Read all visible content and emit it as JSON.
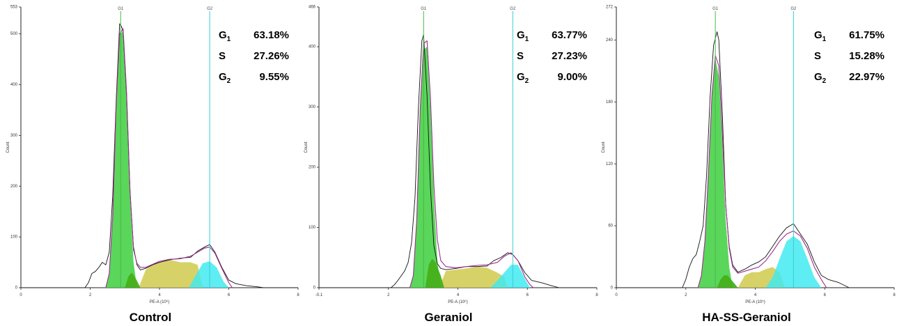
{
  "chart_data": [
    {
      "type": "area",
      "caption": "Control",
      "ylabel": "Count",
      "xlabel": "PE-A (10⁶)",
      "xlim": [
        0,
        8
      ],
      "ylim": [
        0,
        553
      ],
      "x_ticks": [
        "0",
        "2",
        "4",
        "6",
        "8"
      ],
      "y_ticks": [
        {
          "v": 0,
          "label": "0"
        },
        {
          "v": 100,
          "label": "100"
        },
        {
          "v": 200,
          "label": "200"
        },
        {
          "v": 300,
          "label": "300"
        },
        {
          "v": 400,
          "label": "400"
        },
        {
          "v": 500,
          "label": "500"
        },
        {
          "v": 553,
          "label": "553"
        }
      ],
      "gates": [
        {
          "label": "G1",
          "x": 2.88
        },
        {
          "label": "G2",
          "x": 5.45
        }
      ],
      "phases": [
        {
          "name": "G",
          "sub": "1",
          "value": "63.18%"
        },
        {
          "name": "S",
          "sub": "",
          "value": "27.26%"
        },
        {
          "name": "G",
          "sub": "2",
          "value": "9.55%"
        }
      ],
      "series": {
        "g1": {
          "x": [
            2.45,
            2.55,
            2.65,
            2.75,
            2.85,
            2.95,
            3.05,
            3.15,
            3.25,
            3.35
          ],
          "y": [
            0,
            28,
            140,
            360,
            500,
            505,
            380,
            180,
            50,
            0
          ]
        },
        "s_early": {
          "x": [
            3.0,
            3.1,
            3.2,
            3.3,
            3.45
          ],
          "y": [
            0,
            22,
            30,
            20,
            0
          ]
        },
        "s": {
          "x": [
            3.4,
            3.6,
            3.8,
            4.0,
            4.3,
            4.6,
            4.9,
            5.1,
            5.25
          ],
          "y": [
            0,
            35,
            45,
            50,
            55,
            50,
            50,
            45,
            0
          ]
        },
        "g2": {
          "x": [
            4.85,
            5.05,
            5.25,
            5.45,
            5.65,
            5.85,
            6.0
          ],
          "y": [
            0,
            25,
            48,
            52,
            40,
            12,
            0
          ]
        },
        "raw": {
          "x": [
            0,
            1.85,
            1.95,
            2.05,
            2.15,
            2.25,
            2.35,
            2.45,
            2.55,
            2.65,
            2.75,
            2.85,
            2.9,
            2.95,
            3.05,
            3.15,
            3.25,
            3.35,
            3.45,
            3.6,
            3.8,
            4.0,
            4.3,
            4.6,
            4.9,
            5.1,
            5.3,
            5.45,
            5.6,
            5.8,
            6.0,
            6.2,
            6.5,
            6.8,
            7.0,
            8.0
          ],
          "y": [
            0,
            0,
            10,
            28,
            32,
            40,
            50,
            45,
            70,
            180,
            370,
            520,
            515,
            505,
            380,
            190,
            80,
            45,
            35,
            38,
            45,
            50,
            55,
            58,
            60,
            72,
            80,
            85,
            70,
            40,
            15,
            8,
            4,
            2,
            0,
            0
          ]
        },
        "fit": {
          "x": [
            2.45,
            2.55,
            2.65,
            2.75,
            2.85,
            2.95,
            3.05,
            3.15,
            3.25,
            3.35,
            3.45,
            3.6,
            3.8,
            4.0,
            4.3,
            4.6,
            4.9,
            5.1,
            5.3,
            5.45,
            5.6,
            5.8,
            6.0,
            6.1
          ],
          "y": [
            0,
            28,
            140,
            360,
            500,
            510,
            385,
            190,
            75,
            48,
            40,
            40,
            46,
            52,
            56,
            57,
            62,
            70,
            78,
            80,
            68,
            38,
            10,
            0
          ]
        }
      }
    },
    {
      "type": "area",
      "caption": "Geraniol",
      "ylabel": "Count",
      "xlabel": "PE-A (10⁶)",
      "xlim": [
        -0.1,
        8
      ],
      "ylim": [
        0,
        466
      ],
      "x_ticks": [
        "-0.1",
        "2",
        "4",
        "6",
        "8"
      ],
      "y_ticks": [
        {
          "v": 0,
          "label": "0"
        },
        {
          "v": 100,
          "label": "100"
        },
        {
          "v": 200,
          "label": "200"
        },
        {
          "v": 300,
          "label": "300"
        },
        {
          "v": 400,
          "label": "400"
        },
        {
          "v": 466,
          "label": "466"
        }
      ],
      "gates": [
        {
          "label": "G1",
          "x": 2.95
        },
        {
          "label": "G2",
          "x": 5.55
        }
      ],
      "phases": [
        {
          "name": "G",
          "sub": "1",
          "value": "63.77%"
        },
        {
          "name": "S",
          "sub": "",
          "value": "27.23%"
        },
        {
          "name": "G",
          "sub": "2",
          "value": "9.00%"
        }
      ],
      "series": {
        "g1": {
          "x": [
            2.55,
            2.65,
            2.75,
            2.85,
            2.95,
            3.05,
            3.15,
            3.25,
            3.35,
            3.45
          ],
          "y": [
            0,
            20,
            110,
            290,
            395,
            400,
            300,
            150,
            45,
            0
          ]
        },
        "s_early": {
          "x": [
            3.0,
            3.1,
            3.2,
            3.3,
            3.45,
            3.55
          ],
          "y": [
            0,
            38,
            48,
            42,
            20,
            0
          ]
        },
        "s": {
          "x": [
            3.4,
            3.6,
            3.9,
            4.2,
            4.5,
            4.8,
            5.1,
            5.3,
            5.4
          ],
          "y": [
            0,
            28,
            30,
            32,
            35,
            33,
            25,
            18,
            0
          ]
        },
        "g2": {
          "x": [
            4.9,
            5.1,
            5.3,
            5.5,
            5.7,
            5.9,
            6.05
          ],
          "y": [
            0,
            12,
            25,
            38,
            38,
            15,
            0
          ]
        },
        "raw": {
          "x": [
            -0.1,
            2.0,
            2.1,
            2.2,
            2.3,
            2.4,
            2.5,
            2.6,
            2.7,
            2.8,
            2.9,
            2.95,
            3.05,
            3.15,
            3.25,
            3.35,
            3.45,
            3.6,
            3.9,
            4.2,
            4.5,
            4.8,
            5.0,
            5.2,
            5.4,
            5.55,
            5.7,
            5.9,
            6.1,
            6.4,
            6.7,
            6.9,
            8.0
          ],
          "y": [
            0,
            0,
            5,
            12,
            20,
            28,
            42,
            75,
            150,
            300,
            410,
            420,
            320,
            165,
            70,
            40,
            32,
            30,
            32,
            35,
            35,
            36,
            45,
            50,
            58,
            55,
            45,
            25,
            12,
            8,
            3,
            0,
            0
          ]
        },
        "fit": {
          "x": [
            2.55,
            2.65,
            2.75,
            2.85,
            2.95,
            3.05,
            3.15,
            3.25,
            3.35,
            3.45,
            3.6,
            3.9,
            4.2,
            4.5,
            4.8,
            5.1,
            5.3,
            5.5,
            5.7,
            5.9,
            6.05,
            6.15
          ],
          "y": [
            0,
            20,
            112,
            295,
            405,
            410,
            315,
            170,
            80,
            45,
            35,
            33,
            35,
            37,
            38,
            42,
            52,
            58,
            45,
            18,
            5,
            0
          ]
        }
      }
    },
    {
      "type": "area",
      "caption": "HA-SS-Geraniol",
      "ylabel": "Count",
      "xlabel": "PE-A (10⁵)",
      "xlim": [
        0,
        8
      ],
      "ylim": [
        0,
        272
      ],
      "x_ticks": [
        "0",
        "2",
        "4",
        "6",
        "8"
      ],
      "y_ticks": [
        {
          "v": 0,
          "label": "0"
        },
        {
          "v": 60,
          "label": "60"
        },
        {
          "v": 120,
          "label": "120"
        },
        {
          "v": 180,
          "label": "180"
        },
        {
          "v": 240,
          "label": "240"
        },
        {
          "v": 272,
          "label": "272"
        }
      ],
      "gates": [
        {
          "label": "G1",
          "x": 2.85
        },
        {
          "label": "G2",
          "x": 5.1
        }
      ],
      "phases": [
        {
          "name": "G",
          "sub": "1",
          "value": "61.75%"
        },
        {
          "name": "S",
          "sub": "",
          "value": "15.28%"
        },
        {
          "name": "G",
          "sub": "2",
          "value": "22.97%"
        }
      ],
      "series": {
        "g1": {
          "x": [
            2.35,
            2.45,
            2.55,
            2.65,
            2.75,
            2.85,
            2.95,
            3.05,
            3.15,
            3.25,
            3.35
          ],
          "y": [
            0,
            12,
            45,
            110,
            185,
            222,
            205,
            140,
            65,
            20,
            0
          ]
        },
        "s_early": {
          "x": [
            2.9,
            3.0,
            3.1,
            3.2,
            3.3,
            3.5
          ],
          "y": [
            0,
            8,
            12,
            12,
            8,
            0
          ]
        },
        "s": {
          "x": [
            3.5,
            3.7,
            3.9,
            4.1,
            4.3,
            4.5,
            4.7,
            4.85
          ],
          "y": [
            0,
            12,
            15,
            15,
            18,
            20,
            15,
            0
          ]
        },
        "g2": {
          "x": [
            4.3,
            4.5,
            4.7,
            4.9,
            5.1,
            5.3,
            5.5,
            5.7,
            5.9
          ],
          "y": [
            0,
            10,
            28,
            45,
            50,
            45,
            28,
            10,
            0
          ]
        },
        "raw": {
          "x": [
            0,
            1.9,
            2.0,
            2.1,
            2.2,
            2.3,
            2.4,
            2.5,
            2.6,
            2.7,
            2.8,
            2.9,
            2.95,
            3.05,
            3.15,
            3.25,
            3.35,
            3.5,
            3.7,
            3.9,
            4.1,
            4.3,
            4.5,
            4.7,
            4.9,
            5.0,
            5.1,
            5.3,
            5.5,
            5.7,
            5.9,
            6.1,
            6.4,
            6.7,
            8.0
          ],
          "y": [
            0,
            0,
            8,
            20,
            28,
            32,
            45,
            60,
            110,
            185,
            235,
            248,
            240,
            170,
            80,
            40,
            22,
            15,
            18,
            22,
            25,
            30,
            40,
            50,
            58,
            60,
            62,
            52,
            42,
            25,
            12,
            8,
            5,
            0,
            0
          ]
        },
        "fit": {
          "x": [
            2.35,
            2.45,
            2.55,
            2.65,
            2.75,
            2.85,
            2.95,
            3.05,
            3.15,
            3.25,
            3.35,
            3.5,
            3.7,
            3.9,
            4.1,
            4.3,
            4.5,
            4.7,
            4.9,
            5.1,
            5.3,
            5.5,
            5.7,
            5.9,
            6.05
          ],
          "y": [
            0,
            12,
            45,
            110,
            185,
            225,
            215,
            150,
            80,
            38,
            20,
            14,
            16,
            18,
            20,
            26,
            35,
            45,
            52,
            55,
            50,
            38,
            20,
            8,
            0
          ]
        }
      }
    }
  ],
  "colors": {
    "g1": "#3dcf3d",
    "s_early": "#46b01a",
    "s": "#cfca4e",
    "g2": "#42eaf0",
    "raw": "#111111",
    "fit": "#9a2f8e",
    "gate_g1": "#48b848",
    "gate_g2": "#33cfd8"
  }
}
